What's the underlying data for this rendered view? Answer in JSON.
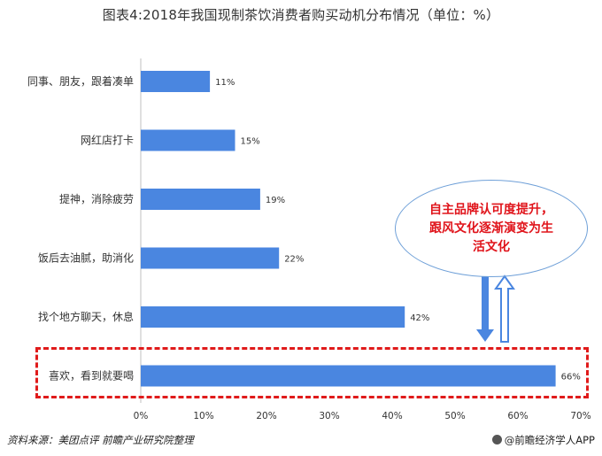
{
  "chart_data": {
    "type": "bar",
    "orientation": "horizontal",
    "title": "图表4:2018年我国现制茶饮消费者购买动机分布情况（单位：%）",
    "categories": [
      "同事、朋友，跟着凑单",
      "网红店打卡",
      "提神，消除疲劳",
      "饭后去油腻，助消化",
      "找个地方聊天，休息",
      "喜欢，看到就要喝"
    ],
    "values": [
      11,
      15,
      19,
      22,
      42,
      66
    ],
    "value_labels": [
      "11%",
      "15%",
      "19%",
      "22%",
      "42%",
      "66%"
    ],
    "xlim": [
      0,
      70
    ],
    "x_ticks": [
      "0%",
      "10%",
      "20%",
      "30%",
      "40%",
      "50%",
      "60%",
      "70%"
    ],
    "bar_color": "#4a86e0",
    "grid": false,
    "highlighted_category": "喜欢，看到就要喝",
    "annotation": "自主品牌认可度提升，跟风文化逐渐演变为生活文化"
  },
  "footer": {
    "source": "资料来源：美团点评 前瞻产业研究院整理",
    "brand": "@前瞻经济学人APP"
  },
  "colors": {
    "highlight_border": "#e01b1b",
    "callout_text": "#e0141b",
    "callout_border": "#6fa0d8",
    "arrow": "#4a86e0"
  }
}
